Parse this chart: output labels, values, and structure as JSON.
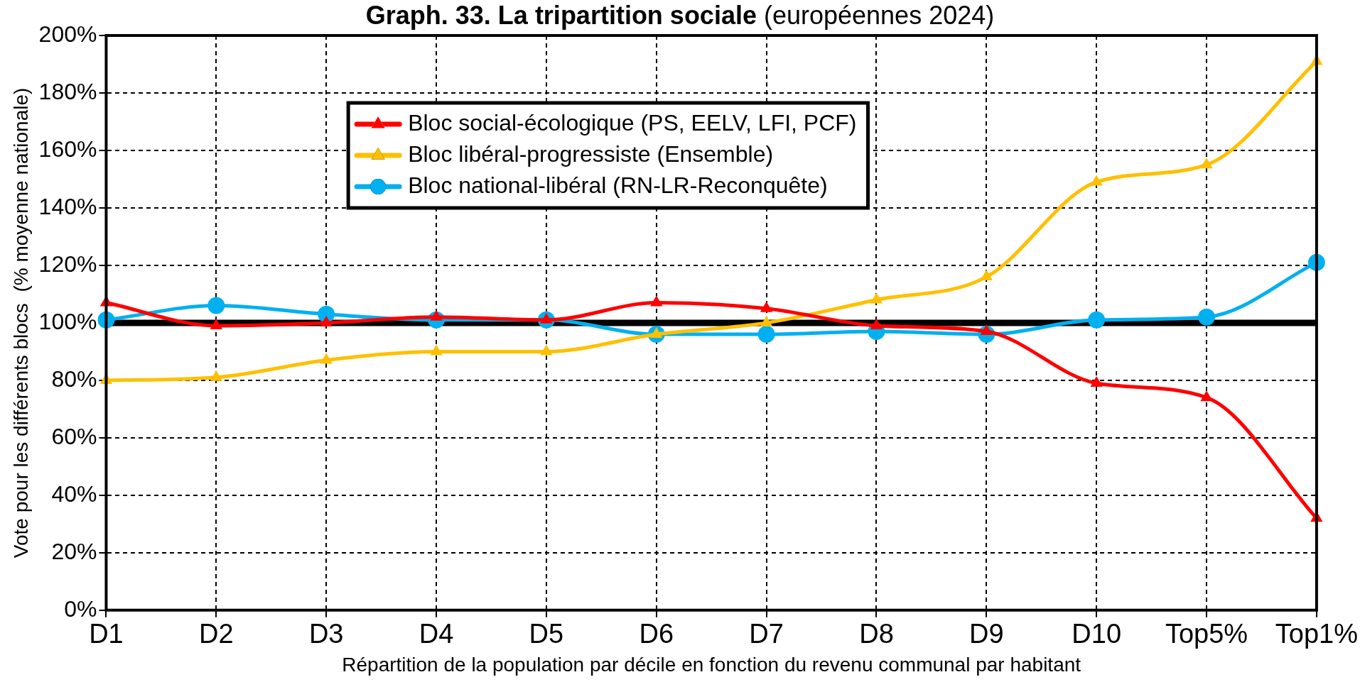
{
  "chart_data": {
    "type": "line",
    "title": "Graph. 33. La tripartition sociale (européennes 2024)",
    "xlabel": "Répartition de la population par décile en fonction du revenu communal par habitant",
    "ylabel": "Vote pour les différents blocs  (% moyenne nationale)",
    "categories": [
      "D1",
      "D2",
      "D3",
      "D4",
      "D5",
      "D6",
      "D7",
      "D8",
      "D9",
      "D10",
      "Top5%",
      "Top1%"
    ],
    "series": [
      {
        "name": "Bloc social-écologique (PS, EELV, LFI, PCF)",
        "color": "#ff0000",
        "marker": "triangle",
        "values": [
          107,
          99,
          100,
          102,
          101,
          107,
          105,
          99,
          97,
          79,
          74,
          32
        ]
      },
      {
        "name": "Bloc libéral-progressiste (Ensemble)",
        "color": "#ffc000",
        "marker": "triangle",
        "values": [
          80,
          81,
          87,
          90,
          90,
          96,
          100,
          108,
          116,
          149,
          155,
          191
        ]
      },
      {
        "name": "Bloc national-libéral (RN-LR-Reconquête)",
        "color": "#00b0f0",
        "marker": "circle",
        "values": [
          101,
          106,
          103,
          101,
          101,
          96,
          96,
          97,
          96,
          101,
          102,
          121
        ]
      }
    ],
    "ylim": [
      0,
      200
    ],
    "yticks": [
      {
        "value": 0,
        "label": "0%"
      },
      {
        "value": 20,
        "label": "20%"
      },
      {
        "value": 40,
        "label": "40%"
      },
      {
        "value": 60,
        "label": "60%"
      },
      {
        "value": 80,
        "label": "80%"
      },
      {
        "value": 100,
        "label": "100%"
      },
      {
        "value": 120,
        "label": "120%"
      },
      {
        "value": 140,
        "label": "140%"
      },
      {
        "value": 160,
        "label": "160%"
      },
      {
        "value": 180,
        "label": "180%"
      },
      {
        "value": 200,
        "label": "200%"
      }
    ],
    "ref_lines": [
      {
        "axis": "y",
        "value": 100,
        "color": "#000000"
      }
    ],
    "grid": true,
    "legend": "top",
    "line_style": "solid"
  }
}
